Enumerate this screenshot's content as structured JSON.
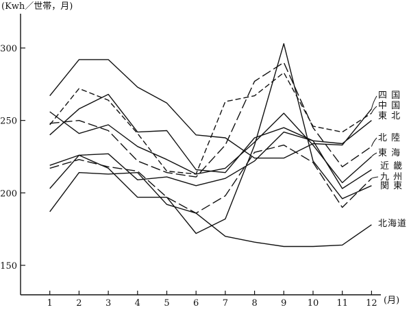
{
  "chart_data": {
    "type": "line",
    "y_unit_label": "(Kwh／世帯，月)",
    "x_unit_label": "(月)",
    "x": [
      1,
      2,
      3,
      4,
      5,
      6,
      7,
      8,
      9,
      10,
      11,
      12
    ],
    "x_tick_labels": [
      "1",
      "2",
      "3",
      "4",
      "5",
      "6",
      "7",
      "8",
      "9",
      "10",
      "11",
      "12"
    ],
    "y_ticks": [
      150,
      200,
      250,
      300
    ],
    "ylim": [
      130,
      350
    ],
    "xlim": [
      0,
      12.6
    ],
    "grid": false,
    "series": [
      {
        "name": "四国",
        "dash": "solid",
        "values": [
          267,
          292,
          292,
          273,
          262,
          240,
          238,
          224,
          224,
          234,
          233,
          258
        ]
      },
      {
        "name": "中国",
        "dash": "dash",
        "values": [
          247,
          272,
          264,
          241,
          215,
          213,
          263,
          267,
          283,
          246,
          242,
          255
        ]
      },
      {
        "name": "東北",
        "dash": "solid",
        "values": [
          240,
          258,
          268,
          242,
          243,
          216,
          214,
          238,
          245,
          236,
          234,
          250
        ]
      },
      {
        "name": "北陸",
        "dash": "longdash",
        "values": [
          248,
          250,
          243,
          222,
          214,
          211,
          233,
          277,
          290,
          245,
          218,
          232
        ]
      },
      {
        "name": "東海",
        "dash": "solid",
        "values": [
          256,
          241,
          247,
          232,
          223,
          213,
          217,
          235,
          255,
          233,
          207,
          225
        ]
      },
      {
        "name": "近畿",
        "dash": "solid",
        "values": [
          219,
          226,
          227,
          209,
          211,
          205,
          210,
          222,
          242,
          236,
          203,
          216
        ]
      },
      {
        "name": "九州",
        "dash": "longdash",
        "values": [
          217,
          223,
          218,
          215,
          197,
          186,
          198,
          228,
          233,
          221,
          190,
          210
        ]
      },
      {
        "name": "関東",
        "dash": "solid",
        "values": [
          203,
          226,
          217,
          197,
          197,
          172,
          182,
          233,
          303,
          222,
          196,
          205
        ]
      },
      {
        "name": "北海道",
        "dash": "solid",
        "values": [
          187,
          214,
          213,
          214,
          192,
          186,
          170,
          166,
          163,
          163,
          164,
          178
        ]
      }
    ],
    "legend": [
      {
        "label": "四 国",
        "connect": [
          0
        ]
      },
      {
        "label": "中 国",
        "connect": [
          1
        ]
      },
      {
        "label": "東 北",
        "connect": [
          2
        ]
      },
      {
        "label": "北 陸",
        "connect": [
          3
        ]
      },
      {
        "label": "東 海",
        "connect": [
          4
        ]
      },
      {
        "label": "近 畿",
        "connect": [
          5
        ]
      },
      {
        "label": "九 州",
        "connect": [
          6
        ]
      },
      {
        "label": "関 東",
        "connect": [
          7
        ]
      },
      {
        "label": "北海道",
        "connect": [
          8
        ]
      }
    ]
  }
}
